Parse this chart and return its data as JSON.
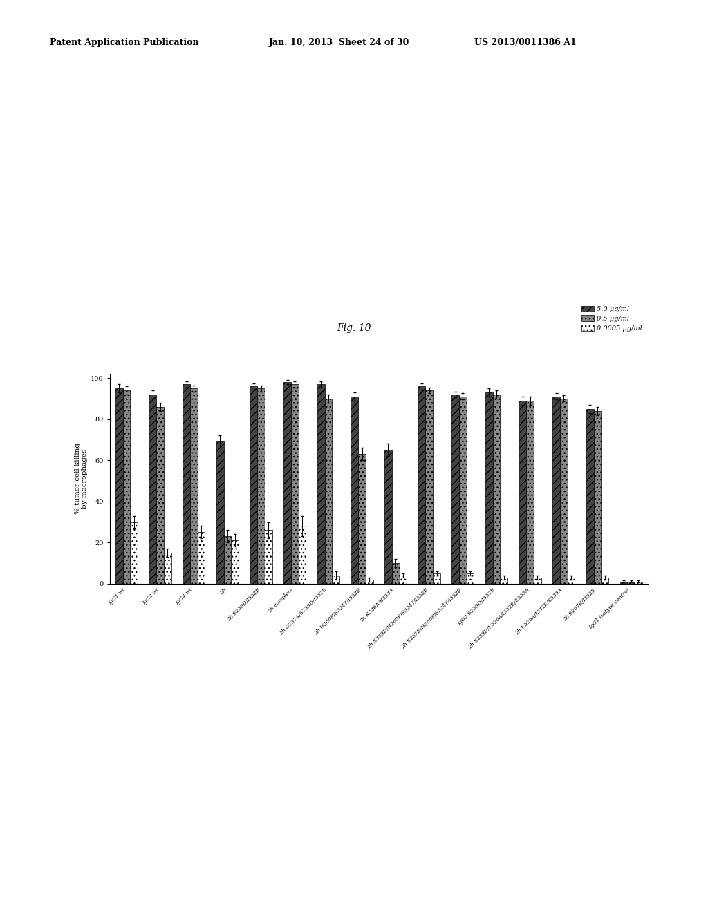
{
  "title": "Fig. 10",
  "header_left": "Patent Application Publication",
  "header_mid": "Jan. 10, 2013  Sheet 24 of 30",
  "header_right": "US 2013/0011386 A1",
  "ylabel": "% tumor cell killing\nby macrophages",
  "ylim": [
    0,
    100
  ],
  "yticks": [
    0,
    20,
    40,
    60,
    80,
    100
  ],
  "categories": [
    "IgG1 wt",
    "IgG2 wt",
    "IgG4 wt",
    "2h",
    "2h S239D/I332E",
    "2h complete",
    "2h G237A/S239D/I332E",
    "2h H268F/S324T/I332E",
    "2h K326A/E333A",
    "2h S339D/H268F/S324T/I332E",
    "2h S267E/H268F/S324T/I332E",
    "IgG2 S239D/I332E",
    "2h S239D/K326A/I332E/E333A",
    "2h K326A/I332E/E333A",
    "2h S267E/I332E",
    "IgG1 Isotype control"
  ],
  "series": {
    "5.0 ug/ml": [
      95,
      92,
      97,
      69,
      96,
      98,
      97,
      91,
      65,
      96,
      92,
      93,
      89,
      91,
      85,
      1
    ],
    "0.5 ug/ml": [
      94,
      86,
      95,
      23,
      95,
      97,
      90,
      63,
      10,
      94,
      91,
      92,
      89,
      90,
      84,
      1
    ],
    "0.0005 ug/ml": [
      30,
      15,
      25,
      21,
      26,
      28,
      4,
      2,
      4,
      5,
      5,
      3,
      3,
      3,
      3,
      1
    ]
  },
  "errors": {
    "5.0 ug/ml": [
      2,
      2,
      1.5,
      3,
      1.5,
      1,
      1.5,
      2,
      3,
      1.5,
      1.5,
      2,
      2,
      1.5,
      2,
      0.5
    ],
    "0.5 ug/ml": [
      2,
      2,
      1.5,
      3,
      1.5,
      1.5,
      2,
      3,
      2,
      1.5,
      1.5,
      2,
      2,
      1.5,
      2,
      0.5
    ],
    "0.0005 ug/ml": [
      3,
      2,
      3,
      3,
      4,
      5,
      2,
      1,
      1,
      1,
      1,
      1,
      1,
      1,
      1,
      0.5
    ]
  },
  "legend_labels": [
    "5.0 μg/ml",
    "0.5 μg/ml",
    "0.0005 μg/ml"
  ],
  "bar_colors": [
    "#444444",
    "#888888",
    "#ffffff"
  ],
  "hatch_patterns": [
    "///",
    "...",
    "..."
  ],
  "fig_background": "#ffffff",
  "fontsize_title": 10,
  "fontsize_axis": 7.5,
  "fontsize_tick": 7,
  "fontsize_legend": 7,
  "fontsize_header": 9
}
